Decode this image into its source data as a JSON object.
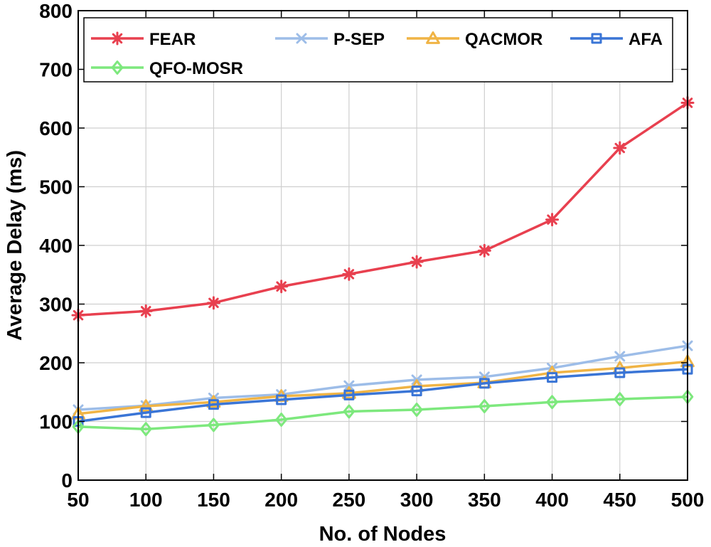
{
  "chart_data": {
    "type": "line",
    "title": "",
    "xlabel": "No. of Nodes",
    "ylabel": "Average Delay (ms)",
    "x": [
      50,
      100,
      150,
      200,
      250,
      300,
      350,
      400,
      450,
      500
    ],
    "xlim": [
      50,
      500
    ],
    "ylim": [
      0,
      800
    ],
    "xticks": [
      "50",
      "100",
      "150",
      "200",
      "250",
      "300",
      "350",
      "400",
      "450",
      "500"
    ],
    "yticks": [
      "0",
      "100",
      "200",
      "300",
      "400",
      "500",
      "600",
      "700",
      "800"
    ],
    "grid": true,
    "legend_position": "top",
    "series": [
      {
        "name": "FEAR",
        "color": "#e8404f",
        "marker": "asterisk",
        "values": [
          281,
          288,
          302,
          330,
          351,
          372,
          391,
          444,
          566,
          643
        ]
      },
      {
        "name": "P-SEP",
        "color": "#9dbde8",
        "marker": "x",
        "values": [
          120,
          127,
          140,
          146,
          161,
          171,
          176,
          191,
          211,
          229
        ]
      },
      {
        "name": "QACMOR",
        "color": "#f0b445",
        "marker": "triangle",
        "values": [
          113,
          126,
          133,
          143,
          148,
          160,
          166,
          183,
          191,
          202
        ]
      },
      {
        "name": "AFA",
        "color": "#3a75d6",
        "marker": "square",
        "values": [
          100,
          115,
          129,
          137,
          145,
          152,
          165,
          175,
          183,
          189
        ]
      },
      {
        "name": "QFO-MOSR",
        "color": "#7de87d",
        "marker": "diamond",
        "values": [
          91,
          87,
          94,
          103,
          117,
          120,
          126,
          133,
          138,
          142
        ]
      }
    ]
  }
}
